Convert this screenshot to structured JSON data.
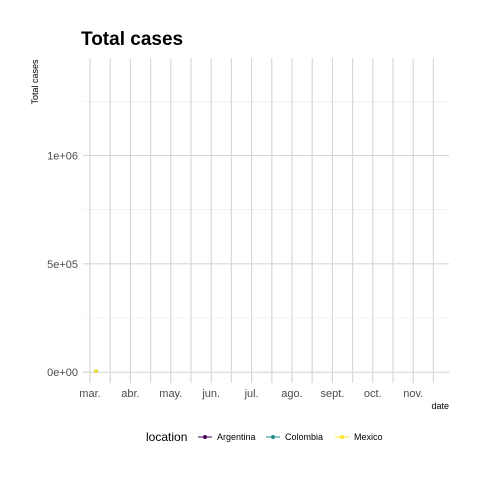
{
  "chart_data": {
    "type": "line",
    "title": "Total cases",
    "ylabel": "Total cases",
    "xlabel": "date",
    "ylim": [
      -50000,
      1450000
    ],
    "y_ticks": [
      0,
      500000,
      1000000
    ],
    "y_tick_labels": [
      "0e+00",
      "5e+05",
      "1e+06"
    ],
    "x_tick_labels": [
      "mar.",
      "abr.",
      "may.",
      "jun.",
      "jul.",
      "ago.",
      "sept.",
      "oct.",
      "nov."
    ],
    "grid": true,
    "legend": {
      "title": "location",
      "position": "bottom",
      "entries": [
        "Argentina",
        "Colombia",
        "Mexico"
      ]
    },
    "series": [
      {
        "name": "Argentina",
        "color": "#440154",
        "x": [
          "mar."
        ],
        "values": [
          0
        ]
      },
      {
        "name": "Colombia",
        "color": "#21908C",
        "x": [
          "mar."
        ],
        "values": [
          0
        ]
      },
      {
        "name": "Mexico",
        "color": "#FDE725",
        "x": [
          "mar."
        ],
        "values": [
          0
        ]
      }
    ]
  }
}
